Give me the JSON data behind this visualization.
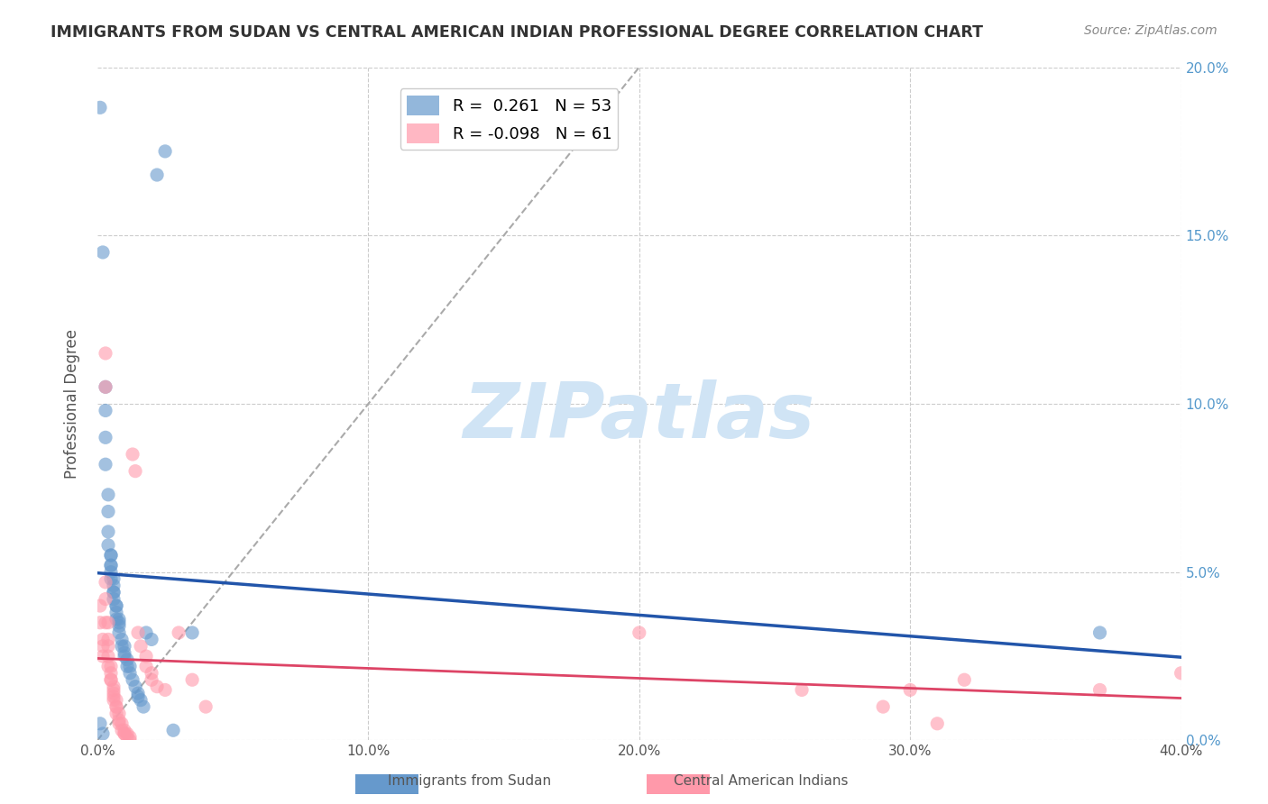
{
  "title": "IMMIGRANTS FROM SUDAN VS CENTRAL AMERICAN INDIAN PROFESSIONAL DEGREE CORRELATION CHART",
  "source": "Source: ZipAtlas.com",
  "xlabel": "",
  "ylabel": "Professional Degree",
  "r_blue": 0.261,
  "n_blue": 53,
  "r_pink": -0.098,
  "n_pink": 61,
  "xlim": [
    0,
    0.4
  ],
  "ylim": [
    0,
    0.2
  ],
  "xticks": [
    0.0,
    0.1,
    0.2,
    0.3,
    0.4
  ],
  "yticks": [
    0.0,
    0.05,
    0.1,
    0.15,
    0.2
  ],
  "xtick_labels": [
    "0.0%",
    "10.0%",
    "20.0%",
    "30.0%",
    "40.0%"
  ],
  "ytick_labels_left": [
    "",
    "",
    "",
    "",
    ""
  ],
  "ytick_labels_right": [
    "0.0%",
    "5.0%",
    "10.0%",
    "15.0%",
    "20.0%"
  ],
  "background_color": "#ffffff",
  "blue_color": "#6699cc",
  "pink_color": "#ff99aa",
  "blue_line_color": "#2255aa",
  "pink_line_color": "#dd4466",
  "diag_line_color": "#aaaaaa",
  "watermark_color": "#d0e4f5",
  "blue_dots": [
    [
      0.001,
      0.188
    ],
    [
      0.001,
      0.005
    ],
    [
      0.002,
      0.145
    ],
    [
      0.003,
      0.098
    ],
    [
      0.003,
      0.105
    ],
    [
      0.003,
      0.09
    ],
    [
      0.003,
      0.082
    ],
    [
      0.004,
      0.073
    ],
    [
      0.004,
      0.068
    ],
    [
      0.004,
      0.062
    ],
    [
      0.004,
      0.058
    ],
    [
      0.005,
      0.055
    ],
    [
      0.005,
      0.055
    ],
    [
      0.005,
      0.052
    ],
    [
      0.005,
      0.052
    ],
    [
      0.005,
      0.05
    ],
    [
      0.005,
      0.048
    ],
    [
      0.006,
      0.048
    ],
    [
      0.006,
      0.046
    ],
    [
      0.006,
      0.044
    ],
    [
      0.006,
      0.044
    ],
    [
      0.006,
      0.042
    ],
    [
      0.007,
      0.04
    ],
    [
      0.007,
      0.04
    ],
    [
      0.007,
      0.038
    ],
    [
      0.007,
      0.036
    ],
    [
      0.008,
      0.036
    ],
    [
      0.008,
      0.035
    ],
    [
      0.008,
      0.034
    ],
    [
      0.008,
      0.032
    ],
    [
      0.009,
      0.03
    ],
    [
      0.009,
      0.028
    ],
    [
      0.01,
      0.028
    ],
    [
      0.01,
      0.026
    ],
    [
      0.01,
      0.025
    ],
    [
      0.011,
      0.024
    ],
    [
      0.011,
      0.022
    ],
    [
      0.012,
      0.022
    ],
    [
      0.012,
      0.02
    ],
    [
      0.013,
      0.018
    ],
    [
      0.014,
      0.016
    ],
    [
      0.015,
      0.014
    ],
    [
      0.015,
      0.013
    ],
    [
      0.016,
      0.012
    ],
    [
      0.017,
      0.01
    ],
    [
      0.018,
      0.032
    ],
    [
      0.02,
      0.03
    ],
    [
      0.022,
      0.168
    ],
    [
      0.025,
      0.175
    ],
    [
      0.028,
      0.003
    ],
    [
      0.035,
      0.032
    ],
    [
      0.37,
      0.032
    ],
    [
      0.002,
      0.002
    ]
  ],
  "pink_dots": [
    [
      0.001,
      0.04
    ],
    [
      0.001,
      0.035
    ],
    [
      0.002,
      0.03
    ],
    [
      0.002,
      0.028
    ],
    [
      0.002,
      0.025
    ],
    [
      0.003,
      0.115
    ],
    [
      0.003,
      0.105
    ],
    [
      0.003,
      0.047
    ],
    [
      0.003,
      0.042
    ],
    [
      0.003,
      0.035
    ],
    [
      0.004,
      0.035
    ],
    [
      0.004,
      0.03
    ],
    [
      0.004,
      0.028
    ],
    [
      0.004,
      0.025
    ],
    [
      0.004,
      0.022
    ],
    [
      0.005,
      0.022
    ],
    [
      0.005,
      0.02
    ],
    [
      0.005,
      0.018
    ],
    [
      0.005,
      0.018
    ],
    [
      0.006,
      0.016
    ],
    [
      0.006,
      0.015
    ],
    [
      0.006,
      0.014
    ],
    [
      0.006,
      0.013
    ],
    [
      0.006,
      0.012
    ],
    [
      0.007,
      0.012
    ],
    [
      0.007,
      0.01
    ],
    [
      0.007,
      0.01
    ],
    [
      0.007,
      0.008
    ],
    [
      0.008,
      0.008
    ],
    [
      0.008,
      0.006
    ],
    [
      0.008,
      0.005
    ],
    [
      0.009,
      0.005
    ],
    [
      0.009,
      0.003
    ],
    [
      0.01,
      0.003
    ],
    [
      0.01,
      0.002
    ],
    [
      0.01,
      0.002
    ],
    [
      0.011,
      0.002
    ],
    [
      0.011,
      0.001
    ],
    [
      0.012,
      0.001
    ],
    [
      0.012,
      0.0
    ],
    [
      0.013,
      0.085
    ],
    [
      0.014,
      0.08
    ],
    [
      0.015,
      0.032
    ],
    [
      0.016,
      0.028
    ],
    [
      0.018,
      0.025
    ],
    [
      0.018,
      0.022
    ],
    [
      0.02,
      0.02
    ],
    [
      0.02,
      0.018
    ],
    [
      0.022,
      0.016
    ],
    [
      0.025,
      0.015
    ],
    [
      0.03,
      0.032
    ],
    [
      0.035,
      0.018
    ],
    [
      0.04,
      0.01
    ],
    [
      0.2,
      0.032
    ],
    [
      0.26,
      0.015
    ],
    [
      0.29,
      0.01
    ],
    [
      0.3,
      0.015
    ],
    [
      0.31,
      0.005
    ],
    [
      0.32,
      0.018
    ],
    [
      0.37,
      0.015
    ],
    [
      0.4,
      0.02
    ]
  ]
}
